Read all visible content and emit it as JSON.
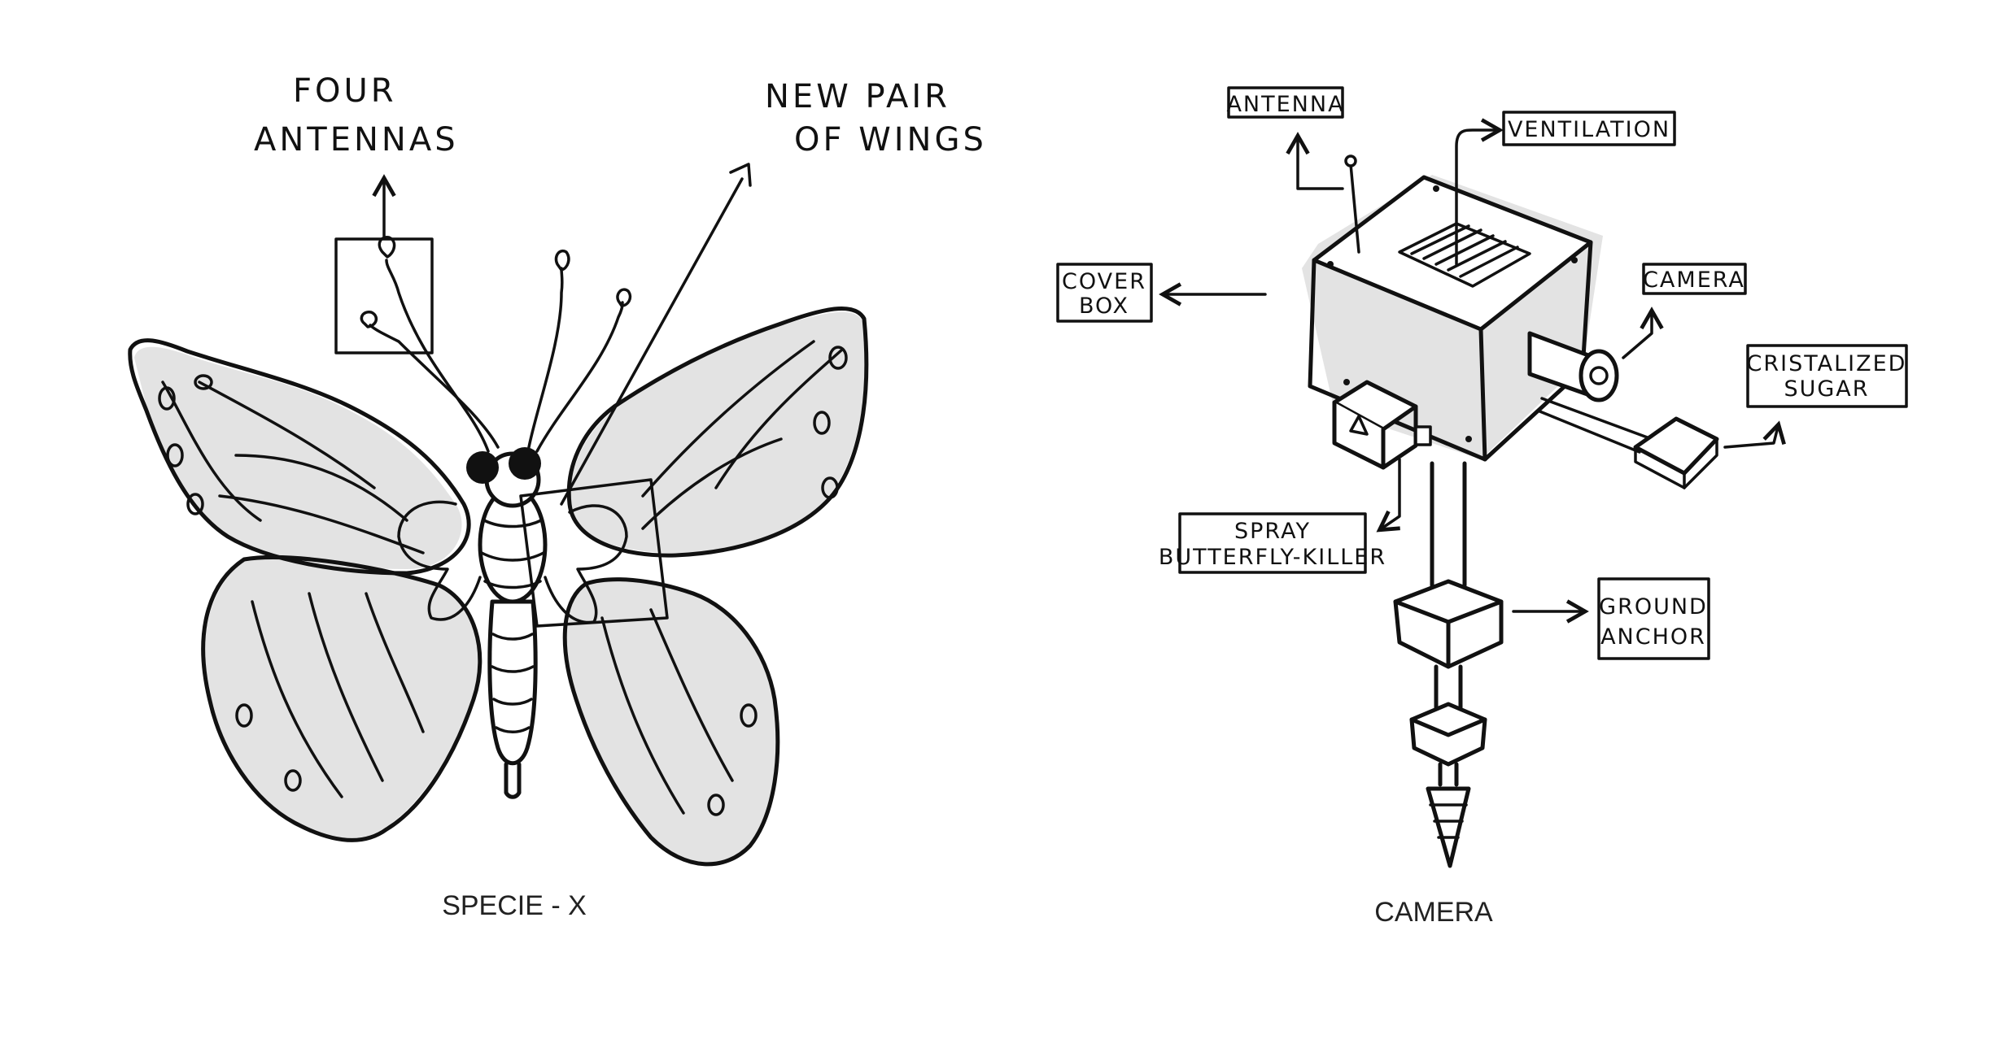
{
  "colors": {
    "ink": "#111111",
    "shade": "#e3e3e3",
    "background": "#ffffff"
  },
  "butterfly": {
    "caption": "SPECIE - X",
    "labels": {
      "four_antennas_line1": "FOUR",
      "four_antennas_line2": "ANTENNAS",
      "new_wings_line1": "NEW PAIR",
      "new_wings_line2": "OF WINGS"
    }
  },
  "camera_device": {
    "caption": "CAMERA",
    "labels": {
      "antenna": "ANTENNA",
      "ventilation": "VENTILATION",
      "cover_box_line1": "COVER",
      "cover_box_line2": "BOX",
      "camera": "CAMERA",
      "sugar_line1": "CRISTALIZED",
      "sugar_line2": "SUGAR",
      "spray_line1": "SPRAY",
      "spray_line2": "BUTTERFLY-KILLER",
      "ground_line1": "GROUND",
      "ground_line2": "ANCHOR"
    }
  }
}
